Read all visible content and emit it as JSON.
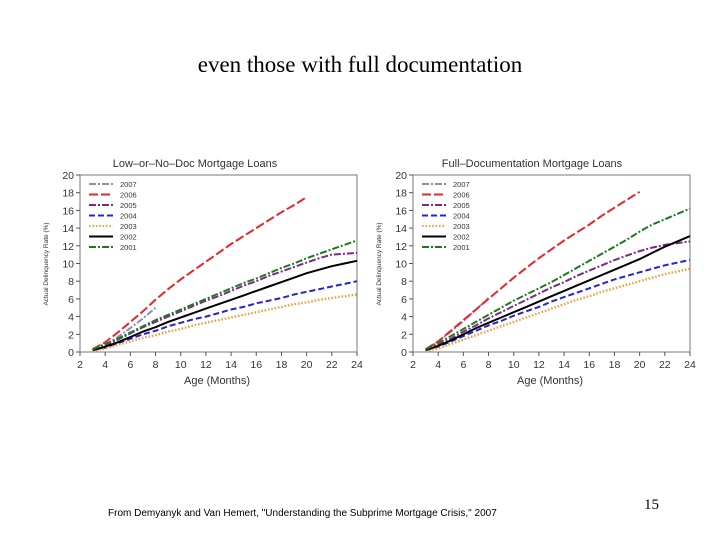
{
  "slide": {
    "title": "even those with full documentation",
    "citation": "From Demyanyk and Van Hemert, \"Understanding the Subprime Mortgage Crisis,\" 2007",
    "page_number": "15"
  },
  "legend_style": {
    "2007": {
      "color": "#9a86b8",
      "dash": "dashdot"
    },
    "2006": {
      "color": "#e8262a",
      "dash": "longdash"
    },
    "2005": {
      "color": "#7a2a8a",
      "dash": "dashdot"
    },
    "2004": {
      "color": "#2424d0",
      "dash": "dash"
    },
    "2003": {
      "color": "#f0a040",
      "dash": "dot"
    },
    "2002": {
      "color": "#000000",
      "dash": "solid"
    },
    "2001": {
      "color": "#1f7a1f",
      "dash": "dashdot"
    }
  },
  "chart_data": [
    {
      "type": "line",
      "title": "Low–or–No–Doc Mortgage Loans",
      "xlabel": "Age (Months)",
      "ylabel": "Actual Delinquency Rate (%)",
      "xlim": [
        2,
        24
      ],
      "ylim": [
        0,
        20
      ],
      "xticks": [
        2,
        4,
        6,
        8,
        10,
        12,
        14,
        16,
        18,
        20,
        22,
        24
      ],
      "yticks": [
        0,
        2,
        4,
        6,
        8,
        10,
        12,
        14,
        16,
        18,
        20
      ],
      "grid": false,
      "legend_position": "top-left",
      "x": [
        3,
        4,
        5,
        6,
        7,
        8,
        9,
        10,
        11,
        12,
        13,
        14,
        15,
        16,
        17,
        18,
        19,
        20,
        21,
        22,
        23,
        24
      ],
      "series": [
        {
          "name": "2007",
          "values": [
            0.3,
            0.8,
            1.7,
            2.7,
            3.8,
            5.0,
            null,
            null,
            null,
            null,
            null,
            null,
            null,
            null,
            null,
            null,
            null,
            null,
            null,
            null,
            null,
            null
          ]
        },
        {
          "name": "2006",
          "values": [
            0.3,
            1.1,
            2.2,
            3.4,
            4.6,
            5.9,
            7.1,
            8.2,
            9.2,
            10.2,
            11.2,
            12.2,
            13.1,
            14.0,
            14.9,
            15.8,
            16.6,
            17.5,
            null,
            null,
            null,
            null
          ]
        },
        {
          "name": "2005",
          "values": [
            0.2,
            0.7,
            1.4,
            2.1,
            2.8,
            3.4,
            4.0,
            4.6,
            5.2,
            5.8,
            6.3,
            6.9,
            7.5,
            8.0,
            8.6,
            9.1,
            9.6,
            10.1,
            10.6,
            11.0,
            11.1,
            11.2
          ]
        },
        {
          "name": "2004",
          "values": [
            0.2,
            0.5,
            1.0,
            1.5,
            2.0,
            2.4,
            2.9,
            3.3,
            3.7,
            4.0,
            4.4,
            4.8,
            5.1,
            5.5,
            5.8,
            6.1,
            6.5,
            6.8,
            7.1,
            7.4,
            7.7,
            8.0
          ]
        },
        {
          "name": "2003",
          "values": [
            0.1,
            0.4,
            0.8,
            1.2,
            1.6,
            1.9,
            2.3,
            2.6,
            3.0,
            3.3,
            3.6,
            3.9,
            4.2,
            4.5,
            4.8,
            5.1,
            5.4,
            5.6,
            5.9,
            6.1,
            6.3,
            6.5
          ]
        },
        {
          "name": "2002",
          "values": [
            0.2,
            0.6,
            1.1,
            1.7,
            2.3,
            2.8,
            3.4,
            3.9,
            4.4,
            4.9,
            5.4,
            5.9,
            6.4,
            6.9,
            7.4,
            7.9,
            8.4,
            8.9,
            9.3,
            9.7,
            10.0,
            10.3
          ]
        },
        {
          "name": "2001",
          "values": [
            0.3,
            0.9,
            1.5,
            2.2,
            2.9,
            3.6,
            4.2,
            4.8,
            5.4,
            6.0,
            6.6,
            7.2,
            7.8,
            8.3,
            8.9,
            9.5,
            10.0,
            10.6,
            11.1,
            11.6,
            12.1,
            12.6
          ]
        }
      ]
    },
    {
      "type": "line",
      "title": "Full–Documentation Mortgage Loans",
      "xlabel": "Age (Months)",
      "ylabel": "Actual Delinquency Rate (%)",
      "xlim": [
        2,
        24
      ],
      "ylim": [
        0,
        20
      ],
      "xticks": [
        2,
        4,
        6,
        8,
        10,
        12,
        14,
        16,
        18,
        20,
        22,
        24
      ],
      "yticks": [
        0,
        2,
        4,
        6,
        8,
        10,
        12,
        14,
        16,
        18,
        20
      ],
      "grid": false,
      "legend_position": "top-left",
      "x": [
        3,
        4,
        5,
        6,
        7,
        8,
        9,
        10,
        11,
        12,
        13,
        14,
        15,
        16,
        17,
        18,
        19,
        20,
        21,
        22,
        23,
        24
      ],
      "series": [
        {
          "name": "2007",
          "values": [
            0.3,
            1.2,
            2.3,
            3.5,
            4.8,
            6.1,
            null,
            null,
            null,
            null,
            null,
            null,
            null,
            null,
            null,
            null,
            null,
            null,
            null,
            null,
            null,
            null
          ]
        },
        {
          "name": "2006",
          "values": [
            0.3,
            1.2,
            2.4,
            3.6,
            4.8,
            6.0,
            7.2,
            8.4,
            9.5,
            10.6,
            11.6,
            12.6,
            13.5,
            14.4,
            15.4,
            16.3,
            17.2,
            18.1,
            null,
            null,
            null,
            null
          ]
        },
        {
          "name": "2005",
          "values": [
            0.2,
            0.8,
            1.5,
            2.3,
            3.0,
            3.8,
            4.5,
            5.2,
            5.9,
            6.6,
            7.3,
            7.9,
            8.6,
            9.2,
            9.8,
            10.4,
            10.9,
            11.4,
            11.8,
            12.1,
            12.3,
            12.5
          ]
        },
        {
          "name": "2004",
          "values": [
            0.2,
            0.6,
            1.2,
            1.8,
            2.4,
            3.0,
            3.5,
            4.1,
            4.6,
            5.1,
            5.7,
            6.2,
            6.7,
            7.2,
            7.7,
            8.2,
            8.6,
            9.0,
            9.4,
            9.8,
            10.1,
            10.4
          ]
        },
        {
          "name": "2003",
          "values": [
            0.1,
            0.4,
            0.9,
            1.4,
            1.9,
            2.4,
            2.9,
            3.4,
            3.9,
            4.4,
            4.9,
            5.4,
            5.9,
            6.3,
            6.8,
            7.2,
            7.6,
            8.0,
            8.4,
            8.8,
            9.1,
            9.4
          ]
        },
        {
          "name": "2002",
          "values": [
            0.2,
            0.7,
            1.3,
            2.0,
            2.7,
            3.3,
            3.9,
            4.5,
            5.1,
            5.7,
            6.3,
            6.9,
            7.5,
            8.1,
            8.7,
            9.3,
            9.9,
            10.5,
            11.2,
            11.9,
            12.5,
            13.1
          ]
        },
        {
          "name": "2001",
          "values": [
            0.3,
            1.0,
            1.8,
            2.6,
            3.4,
            4.2,
            5.0,
            5.8,
            6.5,
            7.2,
            7.9,
            8.7,
            9.5,
            10.3,
            11.1,
            11.9,
            12.7,
            13.6,
            14.4,
            15.0,
            15.6,
            16.2
          ]
        }
      ]
    }
  ]
}
